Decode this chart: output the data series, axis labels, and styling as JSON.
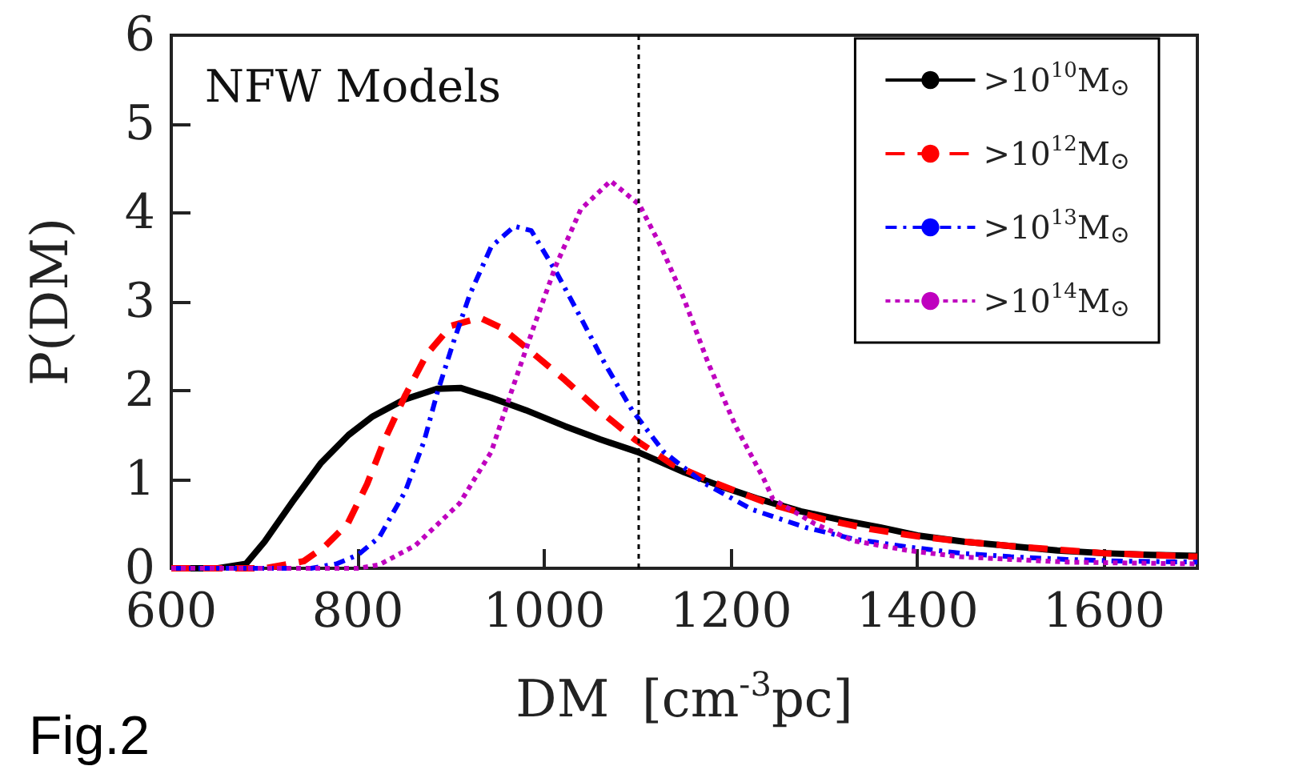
{
  "chart_data": {
    "type": "line",
    "xlabel": "DM  [cm$^{-3}$pc]",
    "ylabel": "P(DM)",
    "annotations": [
      "NFW Models",
      "Fig.2"
    ],
    "xlim": [
      600,
      1700
    ],
    "xticks": [
      600,
      800,
      1000,
      1200,
      1400,
      1600
    ],
    "ylim": [
      0,
      6
    ],
    "yticks": [
      0,
      1,
      2,
      3,
      4,
      5,
      6
    ],
    "grid": false,
    "legend": "top right",
    "marker": "none",
    "ref_lines": [
      {
        "axis": "x",
        "value": 1100,
        "color": "#000000",
        "line_style": "dotted"
      }
    ],
    "series": [
      {
        "name": ">10$^{10}$M$_{⊙}$",
        "color": "#000000",
        "line_style": "solid",
        "x": [
          600,
          650,
          680,
          700,
          730,
          760,
          790,
          816,
          850,
          885,
          910,
          943,
          980,
          1022,
          1060,
          1100,
          1150,
          1190,
          1230,
          1275,
          1320,
          1360,
          1400,
          1450,
          1500,
          1550,
          1600,
          1650,
          1700
        ],
        "values": [
          0,
          0,
          0.05,
          0.3,
          0.75,
          1.18,
          1.5,
          1.71,
          1.9,
          2.02,
          2.03,
          1.92,
          1.78,
          1.6,
          1.45,
          1.31,
          1.08,
          0.92,
          0.78,
          0.64,
          0.54,
          0.46,
          0.37,
          0.3,
          0.25,
          0.2,
          0.17,
          0.15,
          0.14
        ]
      },
      {
        "name": ">10$^{12}$M$_{⊙}$",
        "color": "#ff0000",
        "line_style": "dashed",
        "x": [
          600,
          700,
          742,
          765,
          789,
          810,
          828,
          851,
          874,
          900,
          931,
          955,
          982,
          1022,
          1056,
          1097,
          1137,
          1183,
          1240,
          1300,
          1350,
          1400,
          1450,
          1500,
          1600,
          1700
        ],
        "values": [
          0,
          0,
          0.08,
          0.25,
          0.5,
          0.95,
          1.43,
          1.95,
          2.41,
          2.73,
          2.82,
          2.7,
          2.47,
          2.12,
          1.8,
          1.45,
          1.17,
          0.96,
          0.73,
          0.55,
          0.44,
          0.36,
          0.3,
          0.25,
          0.17,
          0.13
        ]
      },
      {
        "name": ">10$^{13}$M$_{⊙}$",
        "color": "#0000ff",
        "line_style": "dashdot",
        "x": [
          600,
          750,
          777,
          800,
          823,
          851,
          871,
          885,
          902,
          920,
          943,
          968,
          986,
          1014,
          1039,
          1065,
          1094,
          1128,
          1171,
          1223,
          1280,
          1331,
          1390,
          1446,
          1500,
          1560,
          1620,
          1700
        ],
        "values": [
          0,
          0,
          0.05,
          0.15,
          0.35,
          0.87,
          1.43,
          1.97,
          2.53,
          3.08,
          3.62,
          3.85,
          3.8,
          3.31,
          2.82,
          2.3,
          1.78,
          1.31,
          0.96,
          0.66,
          0.46,
          0.33,
          0.24,
          0.17,
          0.13,
          0.1,
          0.08,
          0.07
        ]
      },
      {
        "name": ">10$^{14}$M$_{⊙}$",
        "color": "#bf00bf",
        "line_style": "dotted",
        "x": [
          600,
          800,
          823,
          862,
          909,
          943,
          965,
          988,
          1012,
          1039,
          1071,
          1102,
          1125,
          1149,
          1176,
          1205,
          1235,
          1245,
          1290,
          1331,
          1390,
          1446,
          1500,
          1560,
          1620,
          1700
        ],
        "values": [
          0,
          0,
          0.04,
          0.26,
          0.73,
          1.31,
          2.0,
          2.7,
          3.4,
          4.04,
          4.36,
          4.09,
          3.62,
          3.05,
          2.3,
          1.6,
          1.01,
          0.78,
          0.5,
          0.31,
          0.2,
          0.13,
          0.1,
          0.07,
          0.06,
          0.05
        ]
      }
    ]
  }
}
